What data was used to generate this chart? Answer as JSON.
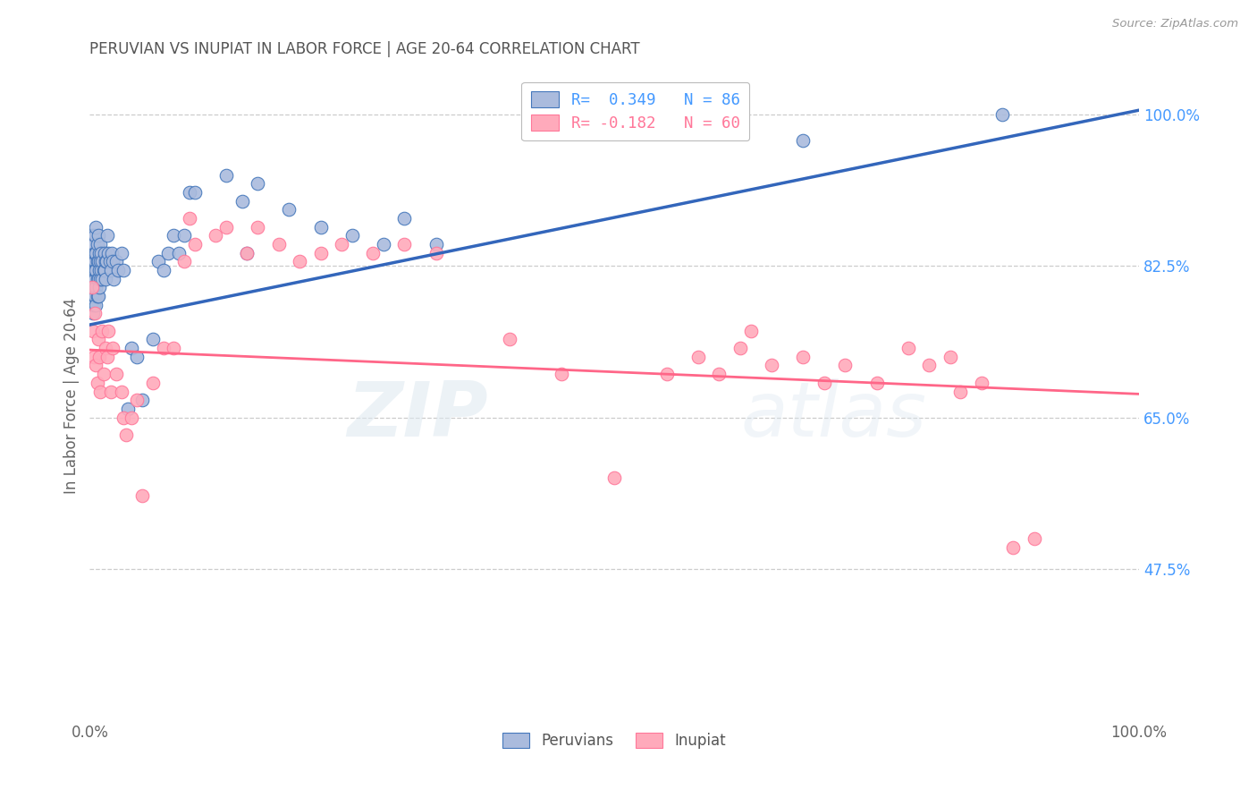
{
  "title": "PERUVIAN VS INUPIAT IN LABOR FORCE | AGE 20-64 CORRELATION CHART",
  "source": "Source: ZipAtlas.com",
  "ylabel": "In Labor Force | Age 20-64",
  "watermark_zip": "ZIP",
  "watermark_atlas": "atlas",
  "xlim": [
    0.0,
    1.0
  ],
  "ylim": [
    0.3,
    1.05
  ],
  "yticks": [
    0.475,
    0.65,
    0.825,
    1.0
  ],
  "ytick_labels": [
    "47.5%",
    "65.0%",
    "82.5%",
    "100.0%"
  ],
  "xtick_labels": [
    "0.0%",
    "100.0%"
  ],
  "xticks": [
    0.0,
    1.0
  ],
  "legend_blue_label": "R=  0.349   N = 86",
  "legend_pink_label": "R= -0.182   N = 60",
  "legend_bottom_peruvians": "Peruvians",
  "legend_bottom_inupiat": "Inupiat",
  "blue_fill": "#AABBDD",
  "pink_fill": "#FFAABB",
  "blue_edge": "#4477BB",
  "pink_edge": "#FF7799",
  "line_blue": "#3366BB",
  "line_pink": "#FF6688",
  "background_color": "#ffffff",
  "grid_color": "#cccccc",
  "title_color": "#555555",
  "right_axis_color": "#4499FF",
  "blue_trendline_y0": 0.757,
  "blue_trendline_y1": 1.005,
  "pink_trendline_y0": 0.728,
  "pink_trendline_y1": 0.677,
  "peruvian_x": [
    0.001,
    0.001,
    0.002,
    0.002,
    0.002,
    0.003,
    0.003,
    0.003,
    0.003,
    0.003,
    0.004,
    0.004,
    0.004,
    0.004,
    0.004,
    0.005,
    0.005,
    0.005,
    0.005,
    0.005,
    0.005,
    0.006,
    0.006,
    0.006,
    0.006,
    0.006,
    0.007,
    0.007,
    0.007,
    0.007,
    0.008,
    0.008,
    0.008,
    0.008,
    0.009,
    0.009,
    0.009,
    0.01,
    0.01,
    0.01,
    0.011,
    0.011,
    0.012,
    0.012,
    0.013,
    0.014,
    0.014,
    0.015,
    0.015,
    0.016,
    0.017,
    0.018,
    0.019,
    0.02,
    0.021,
    0.022,
    0.023,
    0.025,
    0.027,
    0.03,
    0.032,
    0.036,
    0.04,
    0.045,
    0.05,
    0.06,
    0.065,
    0.07,
    0.075,
    0.08,
    0.085,
    0.09,
    0.095,
    0.1,
    0.13,
    0.145,
    0.15,
    0.16,
    0.19,
    0.22,
    0.25,
    0.28,
    0.3,
    0.33,
    0.68,
    0.87
  ],
  "peruvian_y": [
    0.83,
    0.78,
    0.82,
    0.86,
    0.79,
    0.84,
    0.82,
    0.8,
    0.83,
    0.77,
    0.85,
    0.82,
    0.8,
    0.78,
    0.83,
    0.86,
    0.83,
    0.81,
    0.79,
    0.84,
    0.82,
    0.87,
    0.84,
    0.82,
    0.8,
    0.78,
    0.85,
    0.83,
    0.81,
    0.79,
    0.86,
    0.83,
    0.81,
    0.79,
    0.84,
    0.82,
    0.8,
    0.85,
    0.83,
    0.81,
    0.84,
    0.82,
    0.83,
    0.81,
    0.82,
    0.84,
    0.82,
    0.83,
    0.81,
    0.83,
    0.86,
    0.84,
    0.83,
    0.82,
    0.84,
    0.83,
    0.81,
    0.83,
    0.82,
    0.84,
    0.82,
    0.66,
    0.73,
    0.72,
    0.67,
    0.74,
    0.83,
    0.82,
    0.84,
    0.86,
    0.84,
    0.86,
    0.91,
    0.91,
    0.93,
    0.9,
    0.84,
    0.92,
    0.89,
    0.87,
    0.86,
    0.85,
    0.88,
    0.85,
    0.97,
    1.0
  ],
  "inupiat_x": [
    0.002,
    0.003,
    0.004,
    0.005,
    0.006,
    0.007,
    0.008,
    0.009,
    0.01,
    0.012,
    0.013,
    0.015,
    0.017,
    0.018,
    0.02,
    0.022,
    0.025,
    0.03,
    0.032,
    0.035,
    0.04,
    0.045,
    0.05,
    0.06,
    0.07,
    0.08,
    0.09,
    0.095,
    0.1,
    0.12,
    0.13,
    0.15,
    0.16,
    0.18,
    0.2,
    0.22,
    0.24,
    0.27,
    0.3,
    0.33,
    0.4,
    0.45,
    0.5,
    0.55,
    0.58,
    0.6,
    0.62,
    0.63,
    0.65,
    0.68,
    0.7,
    0.72,
    0.75,
    0.78,
    0.8,
    0.82,
    0.83,
    0.85,
    0.88,
    0.9
  ],
  "inupiat_y": [
    0.8,
    0.75,
    0.72,
    0.77,
    0.71,
    0.69,
    0.74,
    0.72,
    0.68,
    0.75,
    0.7,
    0.73,
    0.72,
    0.75,
    0.68,
    0.73,
    0.7,
    0.68,
    0.65,
    0.63,
    0.65,
    0.67,
    0.56,
    0.69,
    0.73,
    0.73,
    0.83,
    0.88,
    0.85,
    0.86,
    0.87,
    0.84,
    0.87,
    0.85,
    0.83,
    0.84,
    0.85,
    0.84,
    0.85,
    0.84,
    0.74,
    0.7,
    0.58,
    0.7,
    0.72,
    0.7,
    0.73,
    0.75,
    0.71,
    0.72,
    0.69,
    0.71,
    0.69,
    0.73,
    0.71,
    0.72,
    0.68,
    0.69,
    0.5,
    0.51
  ]
}
